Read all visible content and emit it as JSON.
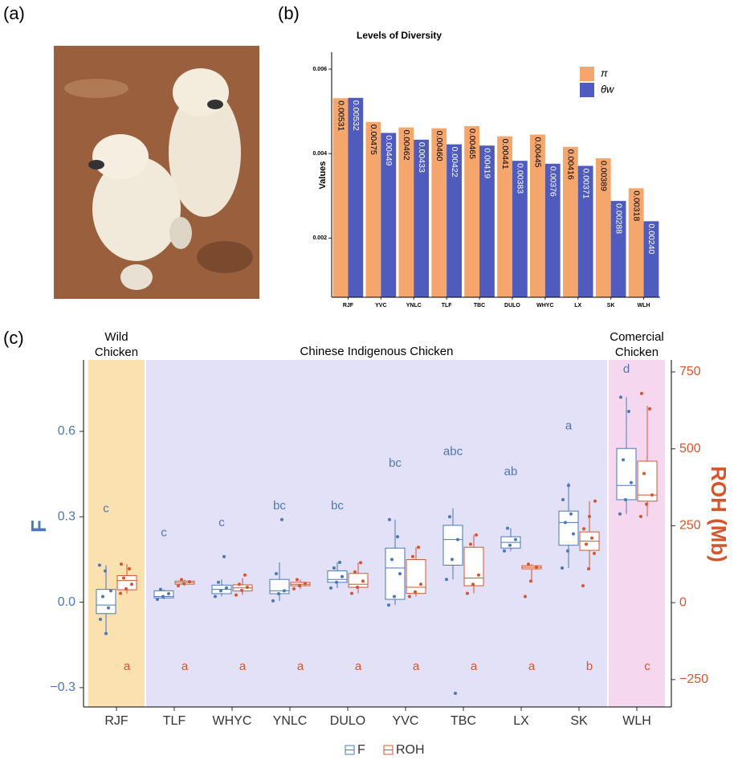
{
  "panel_labels": [
    "(a)",
    "(b)",
    "(c)"
  ],
  "chart_data": [
    {
      "type": "bar",
      "title": "Levels of Diversity",
      "y_label": "Values",
      "categories": [
        "RJF",
        "YVC",
        "YNLC",
        "TLF",
        "TBC",
        "DULO",
        "WHYC",
        "LX",
        "SK",
        "WLH"
      ],
      "series": [
        {
          "name": "π",
          "color": "#f4a66c",
          "label_color": "#000000",
          "values": [
            0.00531,
            0.00475,
            0.00462,
            0.0046,
            0.00465,
            0.00441,
            0.00445,
            0.00416,
            0.00389,
            0.00318
          ],
          "value_labels": [
            "0.00531",
            "0.00475",
            "0.00462",
            "0.00460",
            "0.00465",
            "0.00441",
            "0.00445",
            "0.00416",
            "0.00389",
            "0.00318"
          ]
        },
        {
          "name": "θw",
          "color": "#4f5cbd",
          "label_color": "#ffffff",
          "values": [
            0.00532,
            0.00449,
            0.00433,
            0.00422,
            0.00419,
            0.00383,
            0.00376,
            0.00371,
            0.00288,
            0.0024
          ],
          "value_labels": [
            "0.00532",
            "0.00449",
            "0.00433",
            "0.00422",
            "0.00419",
            "0.00383",
            "0.00376",
            "0.00371",
            "0.00288",
            "0.00240"
          ]
        }
      ],
      "ylim": [
        0.0006,
        0.0064
      ],
      "yticks": [
        0.002,
        0.004,
        0.006
      ]
    },
    {
      "type": "box",
      "y_label": "F",
      "y2_label": "ROH (Mb)",
      "categories": [
        "RJF",
        "TLF",
        "WHYC",
        "YNLC",
        "DULO",
        "YVC",
        "TBC",
        "LX",
        "SK",
        "WLH"
      ],
      "groups": [
        {
          "label_lines": [
            "Wild",
            "Chicken"
          ],
          "color": "#fbe0b0",
          "categories": [
            "RJF"
          ]
        },
        {
          "label_lines": [
            "Chinese Indigenous Chicken"
          ],
          "color": "#e3e1f7",
          "categories": [
            "TLF",
            "WHYC",
            "YNLC",
            "DULO",
            "YVC",
            "TBC",
            "LX",
            "SK"
          ]
        },
        {
          "label_lines": [
            "Comercial",
            "Chicken"
          ],
          "color": "#f6d7f0",
          "categories": [
            "WLH"
          ]
        }
      ],
      "ylim": [
        -0.368,
        0.851
      ],
      "yticks": [
        {
          "value": -0.3,
          "label": "−0.3"
        },
        {
          "value": 0,
          "label": "0.0"
        },
        0.3,
        0.6
      ],
      "y2lim": [
        -339,
        789
      ],
      "y2ticks": [
        {
          "value": -250,
          "label": "−250"
        },
        0,
        250,
        500,
        750
      ],
      "series": [
        {
          "name": "F",
          "color": "#4a78b8",
          "boxes": [
            {
              "low": -0.11,
              "q1": -0.04,
              "median": -0.01,
              "q3": 0.045,
              "high": 0.13,
              "points": [
                0.13,
                0.11,
                0.04,
                0.02,
                -0.02,
                -0.06,
                -0.11
              ]
            },
            {
              "low": 0.01,
              "q1": 0.015,
              "median": 0.02,
              "q3": 0.04,
              "high": 0.045,
              "points": [
                0.01,
                0.02,
                0.03,
                0.045
              ]
            },
            {
              "low": 0.02,
              "q1": 0.03,
              "median": 0.045,
              "q3": 0.06,
              "high": 0.08,
              "points": [
                0.02,
                0.04,
                0.05,
                0.07,
                0.16
              ]
            },
            {
              "low": 0.005,
              "q1": 0.03,
              "median": 0.04,
              "q3": 0.08,
              "high": 0.14,
              "points": [
                0.005,
                0.03,
                0.04,
                0.1,
                0.29
              ]
            },
            {
              "low": 0.05,
              "q1": 0.07,
              "median": 0.08,
              "q3": 0.11,
              "high": 0.14,
              "points": [
                0.05,
                0.07,
                0.09,
                0.12,
                0.14
              ]
            },
            {
              "low": -0.01,
              "q1": 0.01,
              "median": 0.12,
              "q3": 0.19,
              "high": 0.29,
              "points": [
                -0.01,
                0.02,
                0.1,
                0.15,
                0.23,
                0.29
              ]
            },
            {
              "low": 0.08,
              "q1": 0.13,
              "median": 0.22,
              "q3": 0.27,
              "high": 0.33,
              "points": [
                0.08,
                0.15,
                0.22,
                0.3,
                -0.32
              ]
            },
            {
              "low": 0.18,
              "q1": 0.19,
              "median": 0.21,
              "q3": 0.23,
              "high": 0.26,
              "points": [
                0.18,
                0.2,
                0.22,
                0.26
              ]
            },
            {
              "low": 0.12,
              "q1": 0.2,
              "median": 0.28,
              "q3": 0.32,
              "high": 0.42,
              "points": [
                0.12,
                0.18,
                0.24,
                0.28,
                0.31,
                0.36,
                0.41
              ]
            },
            {
              "low": 0.31,
              "q1": 0.36,
              "median": 0.41,
              "q3": 0.54,
              "high": 0.72,
              "points": [
                0.31,
                0.36,
                0.42,
                0.5,
                0.67,
                0.72
              ]
            }
          ],
          "letters": [
            "c",
            "c",
            "c",
            "bc",
            "bc",
            "bc",
            "abc",
            "ab",
            "a",
            "d"
          ]
        },
        {
          "name": "ROH",
          "color": "#d6552c",
          "axis": "y2",
          "boxes": [
            {
              "low": 30,
              "q1": 42,
              "median": 72,
              "q3": 88,
              "high": 125,
              "points": [
                30,
                45,
                60,
                80,
                110,
                125
              ]
            },
            {
              "low": 55,
              "q1": 60,
              "median": 65,
              "q3": 70,
              "high": 75,
              "points": [
                55,
                62,
                68,
                75
              ]
            },
            {
              "low": 25,
              "q1": 38,
              "median": 48,
              "q3": 58,
              "high": 80,
              "points": [
                25,
                40,
                50,
                60,
                90
              ]
            },
            {
              "low": 45,
              "q1": 55,
              "median": 60,
              "q3": 66,
              "high": 75,
              "points": [
                45,
                55,
                62,
                75
              ]
            },
            {
              "low": 30,
              "q1": 50,
              "median": 60,
              "q3": 95,
              "high": 130,
              "points": [
                30,
                50,
                70,
                100,
                130
              ]
            },
            {
              "low": 20,
              "q1": 30,
              "median": 50,
              "q3": 140,
              "high": 180,
              "points": [
                20,
                35,
                60,
                150,
                180
              ]
            },
            {
              "low": 30,
              "q1": 55,
              "median": 80,
              "q3": 180,
              "high": 220,
              "points": [
                30,
                60,
                90,
                190,
                220
              ]
            },
            {
              "low": 70,
              "q1": 110,
              "median": 115,
              "q3": 120,
              "high": 125,
              "points": [
                20,
                70,
                115,
                125
              ]
            },
            {
              "low": 110,
              "q1": 170,
              "median": 200,
              "q3": 230,
              "high": 330,
              "points": [
                55,
                110,
                160,
                190,
                210,
                240,
                280,
                330
              ]
            },
            {
              "low": 280,
              "q1": 330,
              "median": 350,
              "q3": 460,
              "high": 640,
              "points": [
                280,
                320,
                350,
                420,
                630,
                680
              ]
            }
          ],
          "letters": [
            "a",
            "a",
            "a",
            "a",
            "a",
            "a",
            "a",
            "a",
            "b",
            "c"
          ]
        }
      ]
    }
  ]
}
